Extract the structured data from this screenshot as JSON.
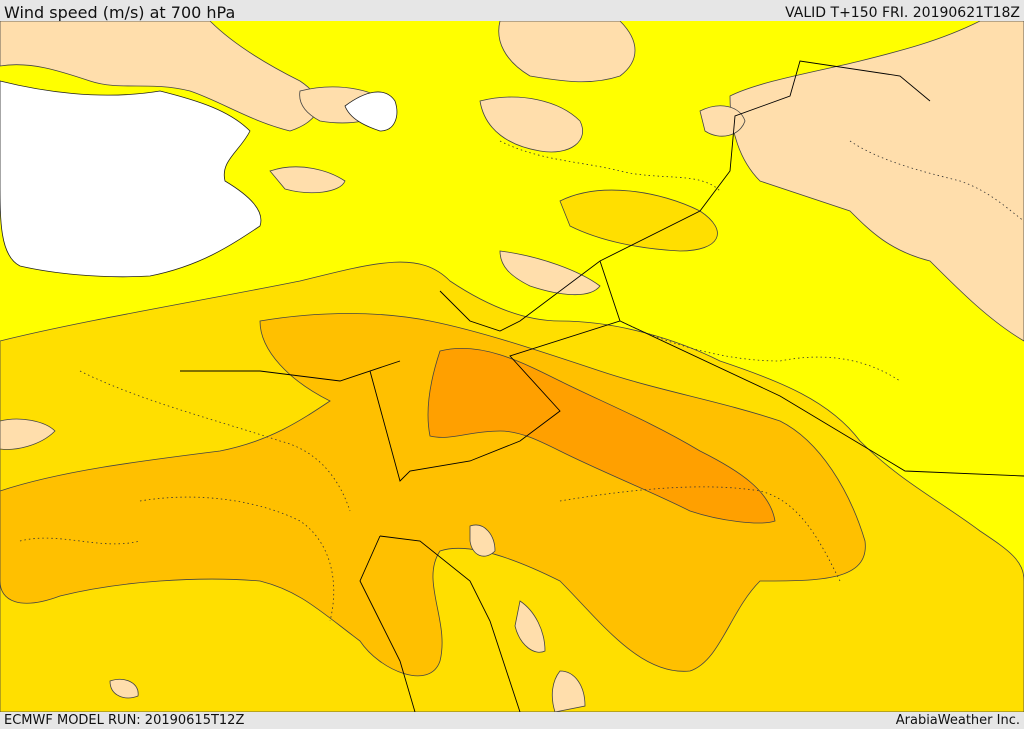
{
  "header": {
    "title": "Wind speed (m/s) at 700 hPa",
    "valid": "VALID T+150 FRI. 20190621T18Z"
  },
  "footer": {
    "model_run": "ECMWF MODEL RUN: 20190615T12Z",
    "credit": "ArabiaWeather Inc."
  },
  "colors": {
    "sea": "#ffffff",
    "land_low": "#ffdeac",
    "band_yellow": "#ffff00",
    "band_gold": "#ffdf00",
    "band_orange_light": "#ffc000",
    "band_orange": "#ffa000",
    "contour": "#333333",
    "border": "#000000"
  }
}
